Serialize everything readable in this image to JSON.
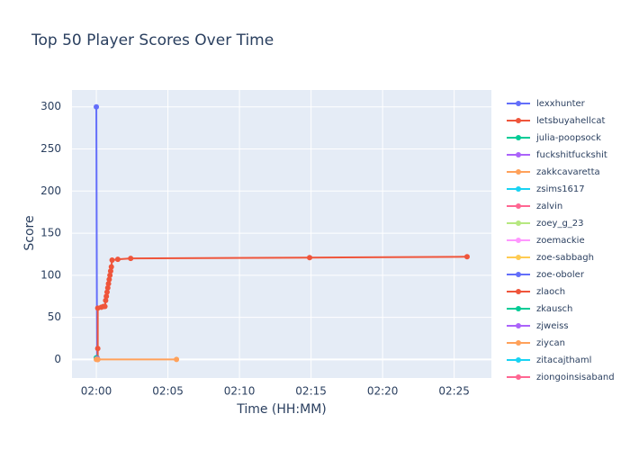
{
  "chart_data": {
    "type": "line",
    "title": "Top 50 Player Scores Over Time",
    "x_label": "Time (HH:MM)",
    "y_label": "Score",
    "xlim": [
      118.3,
      147.6
    ],
    "ylim": [
      -22,
      320
    ],
    "xticks": [
      {
        "value": 120,
        "label": "02:00"
      },
      {
        "value": 125,
        "label": "02:05"
      },
      {
        "value": 130,
        "label": "02:10"
      },
      {
        "value": 135,
        "label": "02:15"
      },
      {
        "value": 140,
        "label": "02:20"
      },
      {
        "value": 145,
        "label": "02:25"
      }
    ],
    "yticks": [
      0,
      50,
      100,
      150,
      200,
      250,
      300
    ],
    "grid": true,
    "legend": "right",
    "series": [
      {
        "name": "lexxhunter",
        "color": "#636efa",
        "x": [
          120.0,
          120.05
        ],
        "values": [
          300,
          2
        ]
      },
      {
        "name": "letsbuyahellcat",
        "color": "#EF553B",
        "x": [
          120.1,
          120.1,
          120.1,
          120.35,
          120.5,
          120.6,
          120.65,
          120.7,
          120.75,
          120.8,
          120.85,
          120.9,
          120.95,
          121.0,
          121.05,
          121.1,
          121.5,
          122.4,
          134.9,
          145.9
        ],
        "values": [
          0,
          13,
          61,
          62,
          63,
          63,
          70,
          75,
          80,
          85,
          90,
          95,
          100,
          105,
          110,
          118,
          119,
          120,
          121,
          122
        ]
      },
      {
        "name": "julia-poopsock",
        "color": "#00cc96",
        "x": [
          120.0
        ],
        "values": [
          2
        ]
      },
      {
        "name": "fuckshitfuckshit",
        "color": "#ab63fa",
        "x": [
          120.05
        ],
        "values": [
          1
        ]
      },
      {
        "name": "zakkcavaretta",
        "color": "#FFA15A",
        "x": [
          120.0,
          120.1,
          125.6
        ],
        "values": [
          0,
          0,
          0
        ]
      },
      {
        "name": "zsims1617",
        "color": "#19d3f3",
        "x": [],
        "values": []
      },
      {
        "name": "zalvin",
        "color": "#FF6692",
        "x": [],
        "values": []
      },
      {
        "name": "zoey_g_23",
        "color": "#B6E880",
        "x": [],
        "values": []
      },
      {
        "name": "zoemackie",
        "color": "#FF97FF",
        "x": [],
        "values": []
      },
      {
        "name": "zoe-sabbagh",
        "color": "#FECB52",
        "x": [],
        "values": []
      },
      {
        "name": "zoe-oboler",
        "color": "#636efa",
        "x": [],
        "values": []
      },
      {
        "name": "zlaoch",
        "color": "#EF553B",
        "x": [],
        "values": []
      },
      {
        "name": "zkausch",
        "color": "#00cc96",
        "x": [],
        "values": []
      },
      {
        "name": "zjweiss",
        "color": "#ab63fa",
        "x": [],
        "values": []
      },
      {
        "name": "ziycan",
        "color": "#FFA15A",
        "x": [],
        "values": []
      },
      {
        "name": "zitacajthaml",
        "color": "#19d3f3",
        "x": [],
        "values": []
      },
      {
        "name": "ziongoinsisaband",
        "color": "#FF6692",
        "x": [],
        "values": []
      }
    ]
  }
}
